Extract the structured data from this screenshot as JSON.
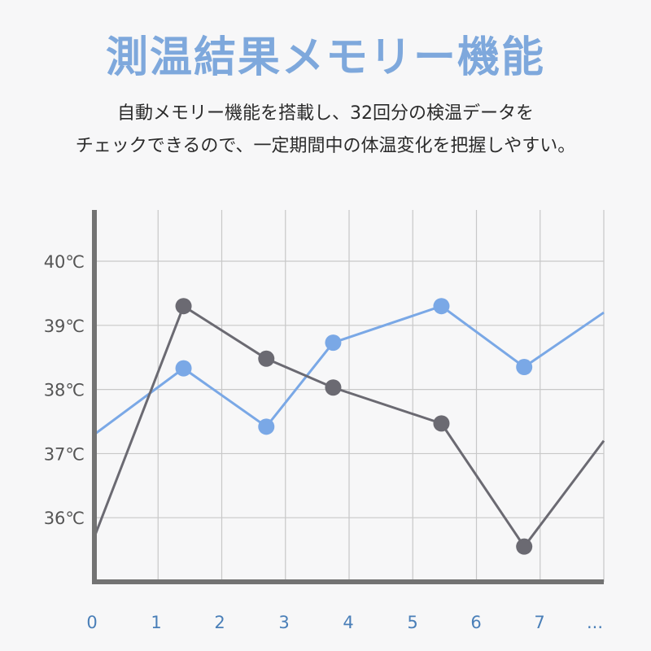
{
  "title": "測温結果メモリー機能",
  "description": {
    "line1": "自動メモリー機能を搭載し、32回分の検温データを",
    "line2": "チェックできるので、一定期間中の体温変化を把握しやすい。"
  },
  "colors": {
    "title": "#7ea8dc",
    "series_blue": "#7aa8e6",
    "series_gray": "#6b6a72",
    "axis": "#737373",
    "grid": "#c8c8c8",
    "x_tick": "#4a7fb8"
  },
  "chart_data": {
    "type": "line",
    "x_ticks": [
      "0",
      "1",
      "2",
      "3",
      "4",
      "5",
      "6",
      "7",
      "..."
    ],
    "y_ticks": [
      "40℃",
      "39℃",
      "38℃",
      "37℃",
      "36℃"
    ],
    "y_tick_values": [
      40,
      39,
      38,
      37,
      36
    ],
    "xlim": [
      0,
      8
    ],
    "ylim": [
      35.0,
      40.8
    ],
    "grid": true,
    "series": [
      {
        "color_key": "series_blue",
        "x": [
          0,
          1.4,
          2.7,
          3.75,
          5.45,
          6.75,
          8
        ],
        "y": [
          37.3,
          38.33,
          37.42,
          38.73,
          39.3,
          38.35,
          39.2
        ],
        "markers": [
          false,
          true,
          true,
          true,
          true,
          true,
          false
        ]
      },
      {
        "color_key": "series_gray",
        "x": [
          0,
          1.4,
          2.7,
          3.75,
          5.45,
          6.75,
          8
        ],
        "y": [
          35.7,
          39.3,
          38.48,
          38.03,
          37.47,
          35.55,
          37.2
        ],
        "markers": [
          false,
          true,
          true,
          true,
          true,
          true,
          false
        ]
      }
    ]
  }
}
